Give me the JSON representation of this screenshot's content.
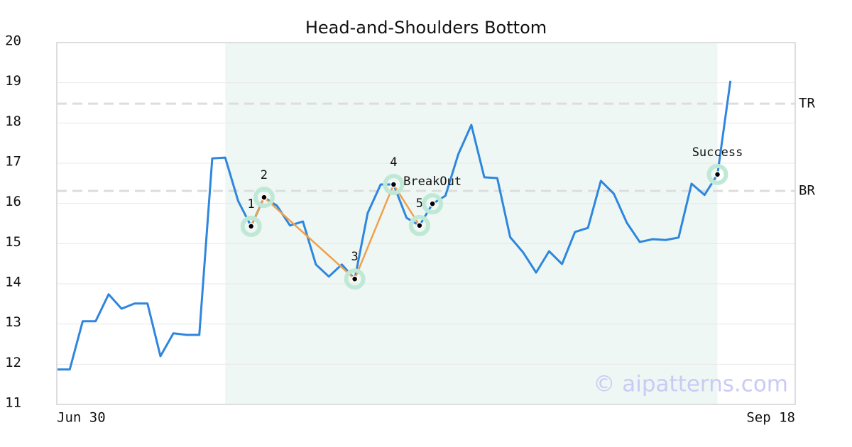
{
  "chart_data": {
    "type": "line",
    "title": "Head-and-Shoulders Bottom",
    "x": [
      0,
      1,
      2,
      3,
      4,
      5,
      6,
      7,
      8,
      9,
      10,
      11,
      12,
      13,
      14,
      15,
      16,
      17,
      18,
      19,
      20,
      21,
      22,
      23,
      24,
      25,
      26,
      27,
      28,
      29,
      30,
      31,
      32,
      33,
      34,
      35,
      36,
      37,
      38,
      39,
      40,
      41,
      42,
      43,
      44,
      45,
      46,
      47,
      48,
      49,
      50,
      51,
      52
    ],
    "values": [
      11.87,
      11.87,
      13.07,
      13.07,
      13.74,
      13.38,
      13.51,
      13.51,
      12.2,
      12.77,
      12.73,
      12.73,
      17.12,
      17.14,
      16.06,
      15.43,
      16.15,
      15.94,
      15.45,
      15.55,
      14.48,
      14.18,
      14.48,
      14.12,
      15.76,
      16.47,
      16.47,
      15.64,
      15.45,
      15.99,
      16.19,
      17.23,
      17.95,
      16.65,
      16.63,
      15.16,
      14.78,
      14.28,
      14.81,
      14.49,
      15.29,
      15.39,
      16.56,
      16.24,
      15.52,
      15.04,
      15.11,
      15.09,
      15.15,
      16.49,
      16.21,
      16.72,
      19.05
    ],
    "color": "#2e86de",
    "xlim": [
      0,
      57
    ],
    "xticks": [
      {
        "value": 0,
        "label": "Jun 30"
      },
      {
        "value": 57,
        "label": "Sep 18"
      }
    ],
    "ylim": [
      11,
      20
    ],
    "yticks": [
      11,
      12,
      13,
      14,
      15,
      16,
      17,
      18,
      19,
      20
    ],
    "grid": true,
    "span": [
      13,
      51
    ],
    "span_color": "#eef7f3",
    "pattern_color": "#f0a04b",
    "pattern_points": [
      {
        "x": 15,
        "y": 15.43,
        "label": "1"
      },
      {
        "x": 16,
        "y": 16.15,
        "label": "2"
      },
      {
        "x": 23,
        "y": 14.12,
        "label": "3"
      },
      {
        "x": 26,
        "y": 16.47,
        "label": "4"
      },
      {
        "x": 28,
        "y": 15.45,
        "label": "5"
      }
    ],
    "events": [
      {
        "x": 29,
        "y": 15.99,
        "label": "BreakOut"
      },
      {
        "x": 51,
        "y": 16.72,
        "label": "Success"
      }
    ],
    "hlines": [
      {
        "label": "TR",
        "value": 18.48
      },
      {
        "label": "BR",
        "value": 16.31
      }
    ],
    "watermark": "© aipatterns.com"
  }
}
